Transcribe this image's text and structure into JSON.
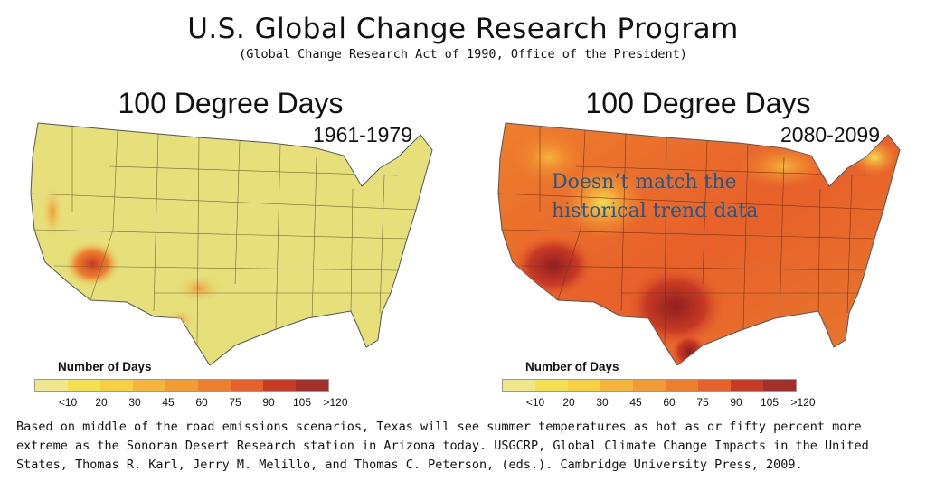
{
  "header": {
    "title": "U.S. Global Change Research Program",
    "subtitle": "(Global Change Research Act of 1990, Office of the President)"
  },
  "maps": [
    {
      "title": "100 Degree Days",
      "period": "1961-1979",
      "legend_title": "Number of Days"
    },
    {
      "title": "100 Degree Days",
      "period": "2080-2099",
      "legend_title": "Number of Days"
    }
  ],
  "legend": {
    "labels": [
      "<10",
      "20",
      "30",
      "45",
      "60",
      "75",
      "90",
      "105",
      ">120"
    ],
    "colors": [
      "#f0e68c",
      "#f5e050",
      "#f7cf3f",
      "#f5b43a",
      "#f39a33",
      "#ee7f2d",
      "#e8602a",
      "#c83a24",
      "#a52f2a"
    ]
  },
  "annotation": {
    "line1": "Doesn’t match the",
    "line2": "historical trend data"
  },
  "caption": "Based on middle of the road emissions scenarios, Texas will see summer temperatures as hot as or fifty percent more extreme as the Sonoran Desert Research station in Arizona today. USGCRP, Global Climate Change Impacts in the United States, Thomas R. Karl, Jerry M. Melillo, and Thomas C. Peterson, (eds.). Cambridge University Press, 2009."
}
